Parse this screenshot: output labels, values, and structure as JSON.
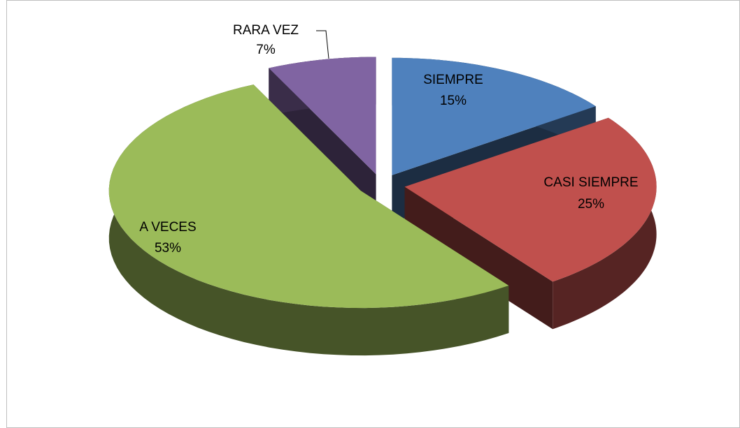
{
  "chart_data": {
    "type": "pie",
    "three_d": true,
    "exploded": true,
    "categories": [
      "SIEMPRE",
      "CASI SIEMPRE",
      "A VECES",
      "RARA VEZ"
    ],
    "values": [
      15,
      25,
      53,
      7
    ],
    "value_labels": [
      "15%",
      "25%",
      "53%",
      "7%"
    ],
    "colors": [
      "#4f81bd",
      "#c0504d",
      "#9bbb59",
      "#8064a2"
    ]
  }
}
